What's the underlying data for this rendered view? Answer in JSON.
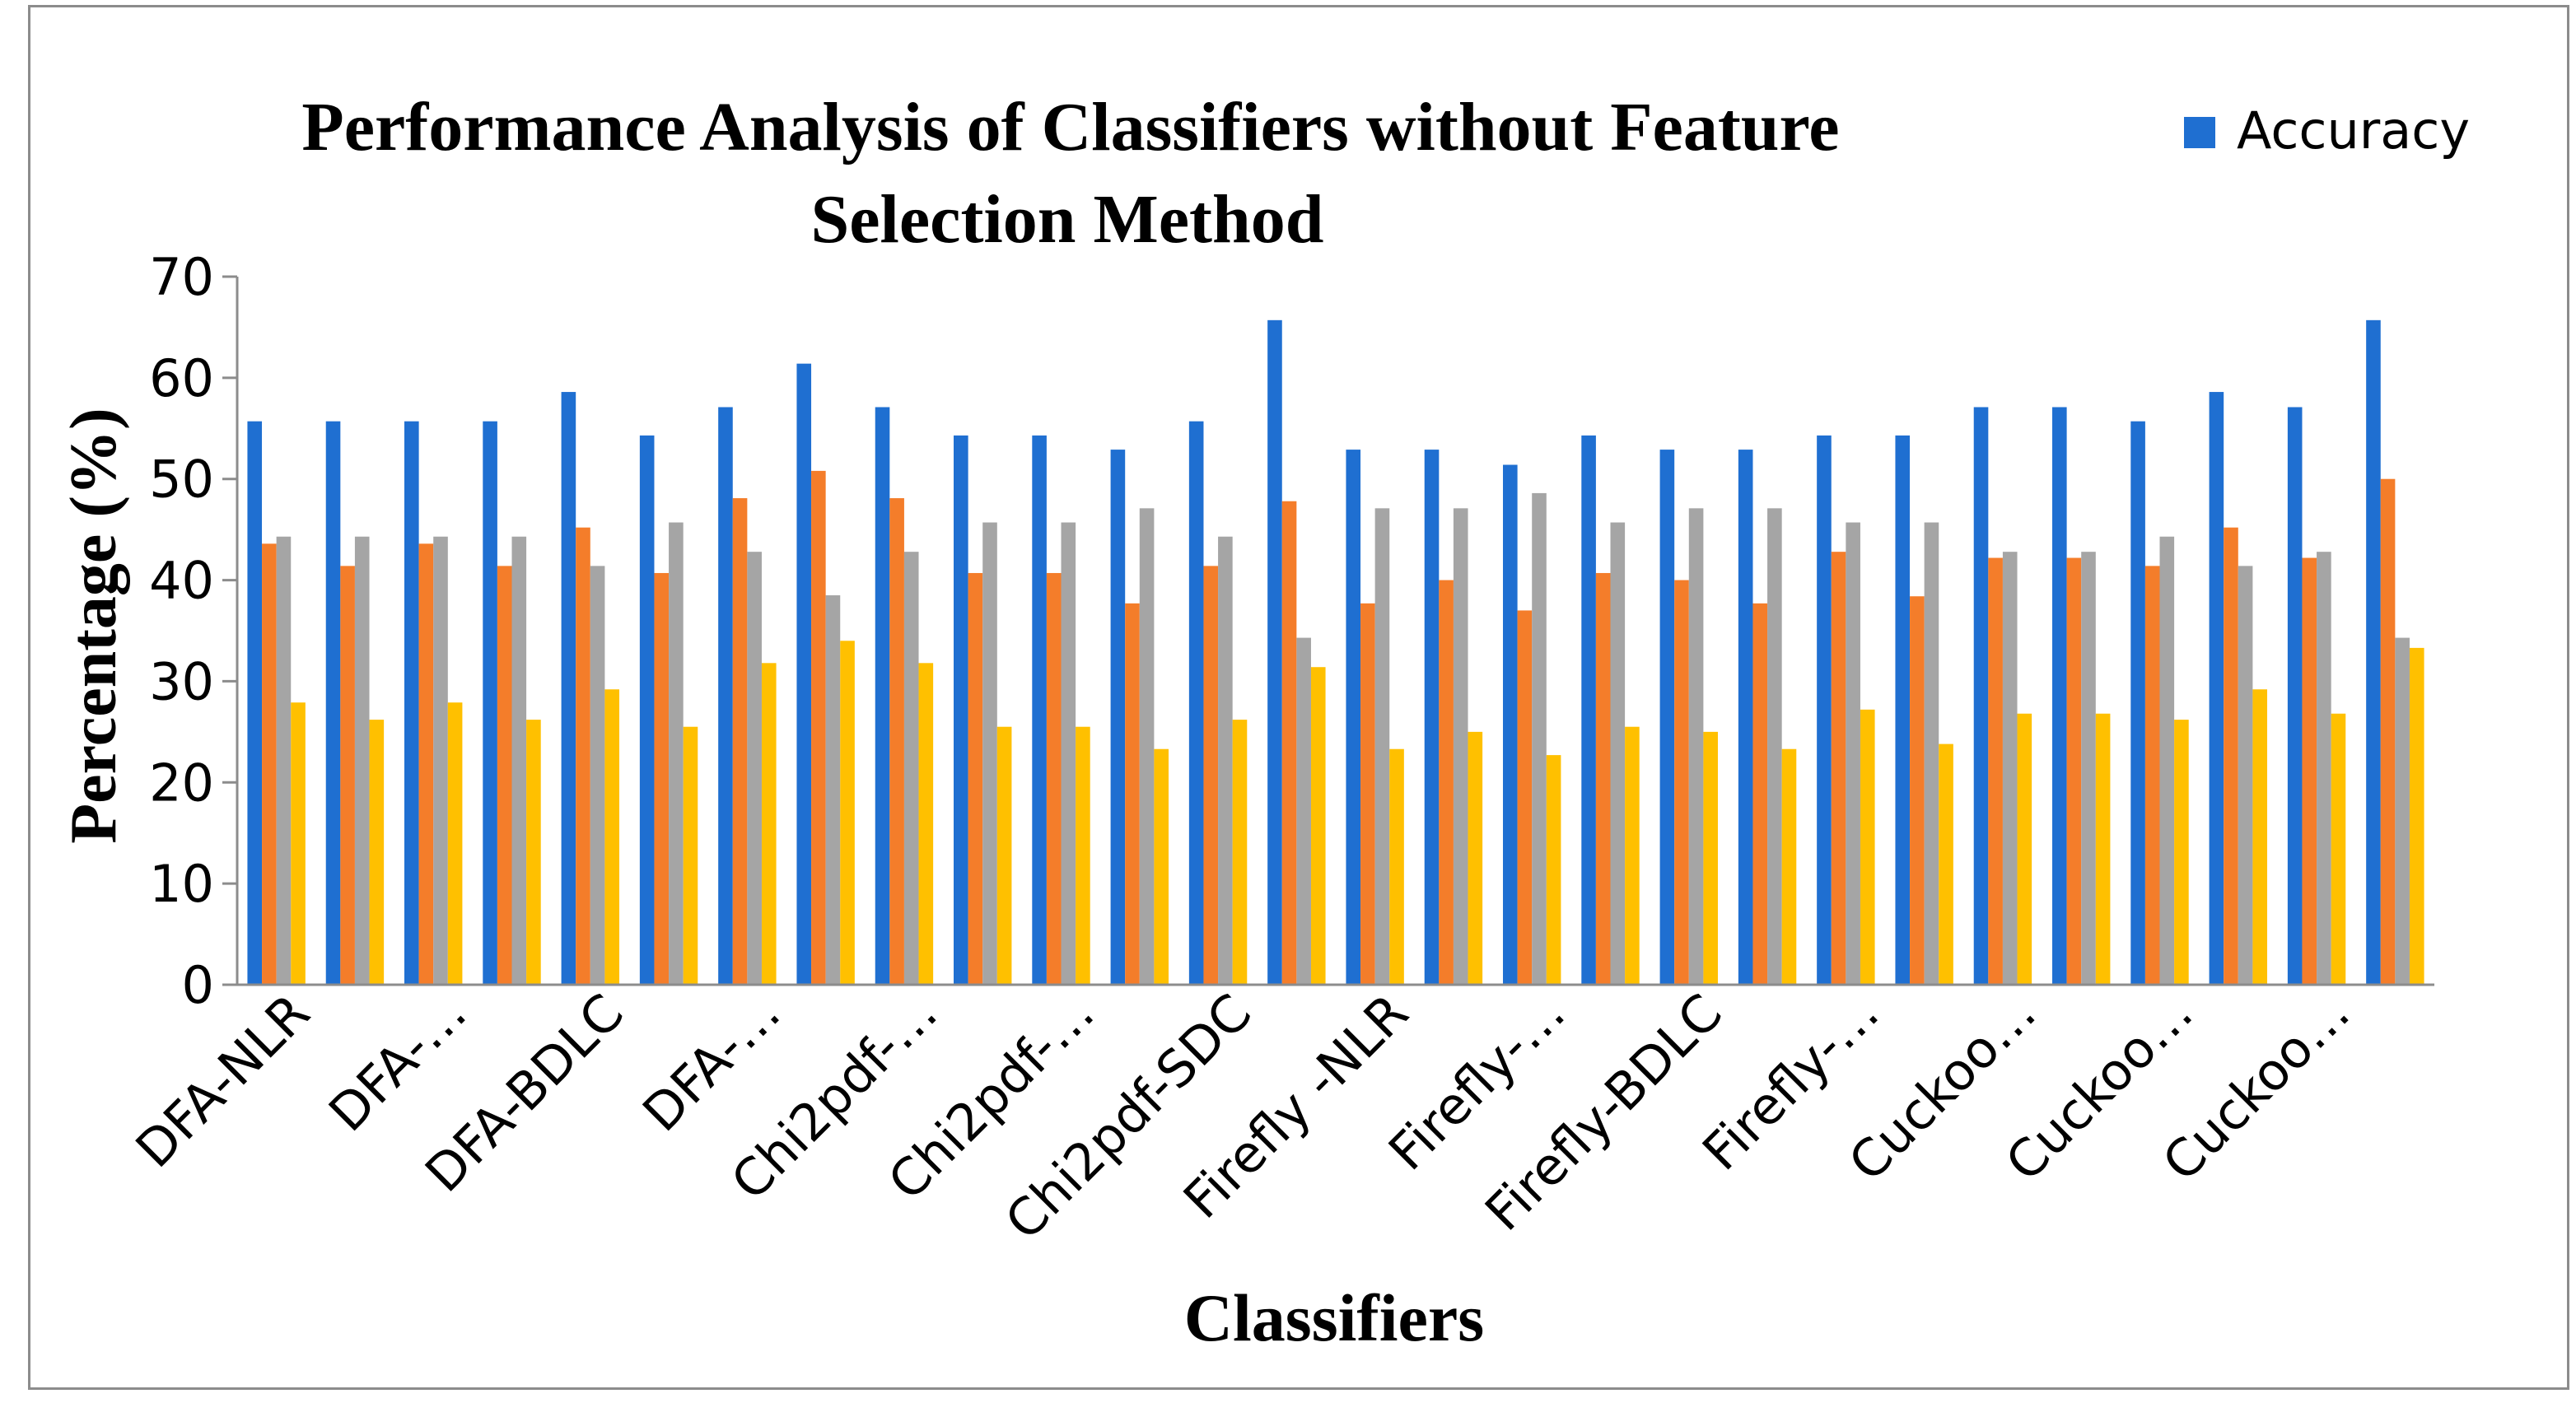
{
  "chart_data": {
    "type": "bar",
    "title_lines": [
      "Performance Analysis of Classifiers without Feature",
      "Selection Method"
    ],
    "xlabel": "Classifiers",
    "ylabel": "Percentage (%)",
    "ylim": [
      0,
      70
    ],
    "yticks": [
      0,
      10,
      20,
      30,
      40,
      50,
      60,
      70
    ],
    "grid": false,
    "legend_position": "top-right",
    "legend_entries": [
      "Accuracy"
    ],
    "category_labels": [
      "DFA-NLR",
      "DFA-…",
      "DFA-BDLC",
      "DFA-…",
      "Chi2pdf-…",
      "Chi2pdf-…",
      "Chi2pdf-SDC",
      "Firefly -NLR",
      "Firefly-…",
      "Firefly-BDLC",
      "Firefly-…",
      "Cuckoo…",
      "Cuckoo…",
      "Cuckoo…"
    ],
    "category_count": 28,
    "series": [
      {
        "name": "Accuracy",
        "color": "#1f6fd1",
        "values": [
          55.7,
          55.7,
          55.7,
          55.7,
          58.6,
          54.3,
          57.1,
          61.4,
          57.1,
          54.3,
          54.3,
          52.9,
          55.7,
          65.7,
          52.9,
          52.9,
          51.4,
          54.3,
          52.9,
          52.9,
          54.3,
          54.3,
          57.1,
          57.1,
          55.7,
          58.6,
          57.1,
          65.7
        ]
      },
      {
        "color": "#f47d2a",
        "values": [
          43.6,
          41.4,
          43.6,
          41.4,
          45.2,
          40.7,
          48.1,
          50.8,
          48.1,
          40.7,
          40.7,
          37.7,
          41.4,
          47.8,
          37.7,
          40.0,
          37.0,
          40.7,
          40.0,
          37.7,
          42.8,
          38.4,
          42.2,
          42.2,
          41.4,
          45.2,
          42.2,
          50.0
        ]
      },
      {
        "color": "#a5a5a5",
        "values": [
          44.3,
          44.3,
          44.3,
          44.3,
          41.4,
          45.7,
          42.8,
          38.5,
          42.8,
          45.7,
          45.7,
          47.1,
          44.3,
          34.3,
          47.1,
          47.1,
          48.6,
          45.7,
          47.1,
          47.1,
          45.7,
          45.7,
          42.8,
          42.8,
          44.3,
          41.4,
          42.8,
          34.3
        ]
      },
      {
        "color": "#ffc000",
        "values": [
          27.9,
          26.2,
          27.9,
          26.2,
          29.2,
          25.5,
          31.8,
          34.0,
          31.8,
          25.5,
          25.5,
          23.3,
          26.2,
          31.4,
          23.3,
          25.0,
          22.7,
          25.5,
          25.0,
          23.3,
          27.2,
          23.8,
          26.8,
          26.8,
          26.2,
          29.2,
          26.8,
          33.3
        ]
      }
    ]
  }
}
